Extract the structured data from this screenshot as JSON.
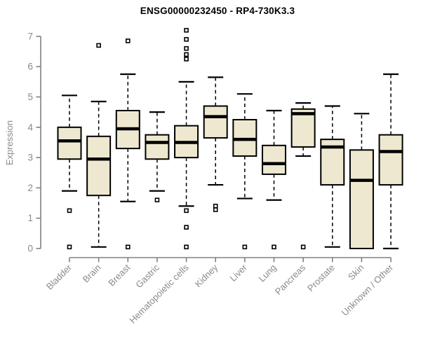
{
  "title": "ENSG00000232450 - RP4-730K3.3",
  "y_axis_label": "Expression",
  "chart_data": {
    "type": "boxplot",
    "title": "ENSG00000232450 - RP4-730K3.3",
    "xlabel": "",
    "ylabel": "Expression",
    "ylim": [
      0,
      7
    ],
    "y_ticks": [
      0,
      1,
      2,
      3,
      4,
      5,
      6,
      7
    ],
    "grid": false,
    "legend": "none",
    "categories": [
      "Bladder",
      "Brain",
      "Breast",
      "Gastric",
      "Hematopoietic cells",
      "Kidney",
      "Liver",
      "Lung",
      "Pancreas",
      "Prostate",
      "Skin",
      "Unknown / Other"
    ],
    "series": [
      {
        "category": "Bladder",
        "whisker_low": 1.9,
        "q1": 2.95,
        "median": 3.55,
        "q3": 4.0,
        "whisker_high": 5.05,
        "outliers": [
          1.25,
          0.05
        ]
      },
      {
        "category": "Brain",
        "whisker_low": 0.05,
        "q1": 1.75,
        "median": 2.95,
        "q3": 3.7,
        "whisker_high": 4.85,
        "outliers": [
          6.7
        ]
      },
      {
        "category": "Breast",
        "whisker_low": 1.55,
        "q1": 3.3,
        "median": 3.95,
        "q3": 4.55,
        "whisker_high": 5.75,
        "outliers": [
          6.85,
          0.05
        ]
      },
      {
        "category": "Gastric",
        "whisker_low": 1.9,
        "q1": 2.95,
        "median": 3.5,
        "q3": 3.75,
        "whisker_high": 4.5,
        "outliers": [
          1.6
        ]
      },
      {
        "category": "Hematopoietic cells",
        "whisker_low": 1.4,
        "q1": 3.0,
        "median": 3.5,
        "q3": 4.05,
        "whisker_high": 5.5,
        "outliers": [
          7.2,
          6.9,
          6.6,
          6.4,
          6.25,
          1.25,
          0.7,
          0.05
        ]
      },
      {
        "category": "Kidney",
        "whisker_low": 2.1,
        "q1": 3.65,
        "median": 4.35,
        "q3": 4.7,
        "whisker_high": 5.65,
        "outliers": [
          1.4,
          1.28
        ]
      },
      {
        "category": "Liver",
        "whisker_low": 1.65,
        "q1": 3.05,
        "median": 3.6,
        "q3": 4.25,
        "whisker_high": 5.1,
        "outliers": [
          0.05
        ]
      },
      {
        "category": "Lung",
        "whisker_low": 1.6,
        "q1": 2.45,
        "median": 2.8,
        "q3": 3.4,
        "whisker_high": 4.55,
        "outliers": [
          0.05
        ]
      },
      {
        "category": "Pancreas",
        "whisker_low": 3.05,
        "q1": 3.35,
        "median": 4.45,
        "q3": 4.6,
        "whisker_high": 4.8,
        "outliers": [
          0.05
        ]
      },
      {
        "category": "Prostate",
        "whisker_low": 0.05,
        "q1": 2.1,
        "median": 3.35,
        "q3": 3.6,
        "whisker_high": 4.7,
        "outliers": []
      },
      {
        "category": "Skin",
        "whisker_low": 0.0,
        "q1": 0.0,
        "median": 2.25,
        "q3": 3.25,
        "whisker_high": 4.45,
        "outliers": []
      },
      {
        "category": "Unknown / Other",
        "whisker_low": 0.0,
        "q1": 2.1,
        "median": 3.2,
        "q3": 3.75,
        "whisker_high": 5.75,
        "outliers": []
      }
    ],
    "colors": {
      "box_fill": "#EDE8CF",
      "box_border": "#000000",
      "median": "#000000",
      "whisker": "#000000",
      "axis": "#808080",
      "tick_label": "#8A8A8A",
      "title": "#000000",
      "background": "#FFFFFF"
    }
  }
}
